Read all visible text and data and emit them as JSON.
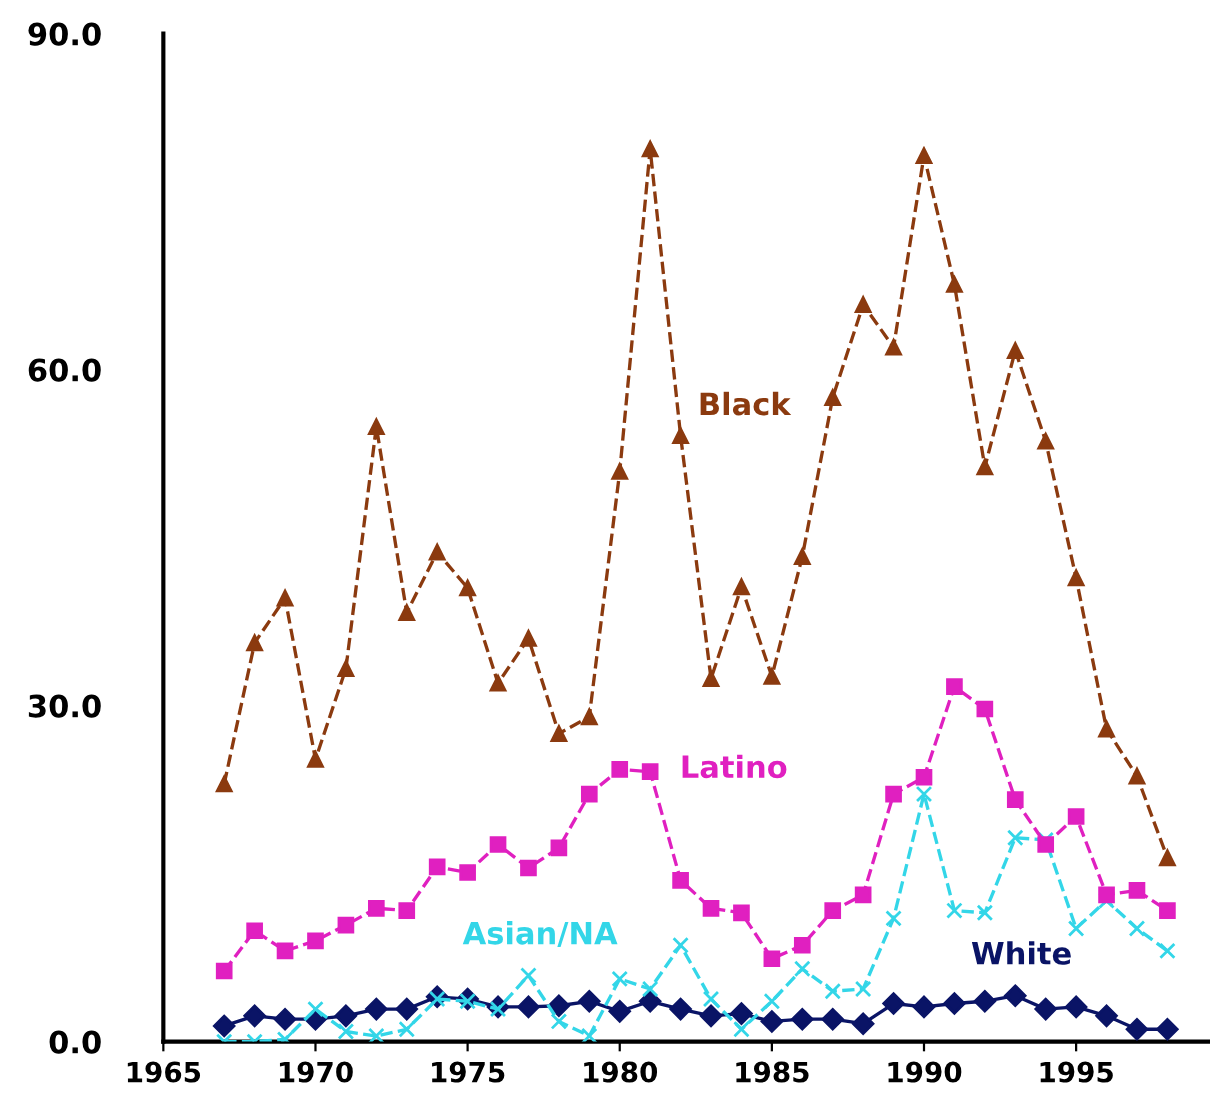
{
  "chart_data": {
    "type": "line",
    "x": [
      1967,
      1968,
      1969,
      1970,
      1971,
      1972,
      1973,
      1974,
      1975,
      1976,
      1977,
      1978,
      1979,
      1980,
      1981,
      1982,
      1983,
      1984,
      1985,
      1986,
      1987,
      1988,
      1989,
      1990,
      1991,
      1992,
      1993,
      1994,
      1995,
      1996,
      1997,
      1998
    ],
    "series": [
      {
        "name": "Black",
        "color": "#8b3a0f",
        "marker": "triangle",
        "line_style": "dashed",
        "values": [
          23.0,
          35.6,
          39.6,
          25.2,
          33.3,
          54.9,
          38.3,
          43.7,
          40.5,
          32.0,
          36.0,
          27.5,
          29.0,
          50.9,
          79.7,
          54.1,
          32.4,
          40.6,
          32.6,
          43.3,
          57.5,
          65.8,
          62.0,
          79.1,
          67.6,
          51.3,
          61.7,
          53.6,
          41.4,
          27.9,
          23.7,
          16.4
        ]
      },
      {
        "name": "Latino",
        "color": "#e020c0",
        "marker": "square",
        "line_style": "dashed",
        "values": [
          6.3,
          9.9,
          8.1,
          9.0,
          10.4,
          11.9,
          11.7,
          15.6,
          15.1,
          17.6,
          15.5,
          17.3,
          22.1,
          24.3,
          24.1,
          14.4,
          11.9,
          11.5,
          7.4,
          8.6,
          11.7,
          13.1,
          22.1,
          23.6,
          31.7,
          29.7,
          21.6,
          17.6,
          20.1,
          13.1,
          13.5,
          11.7
        ]
      },
      {
        "name": "Asian/NA",
        "color": "#33d6e8",
        "marker": "cross",
        "line_style": "dashed",
        "values": [
          0.0,
          0.0,
          0.2,
          2.9,
          0.9,
          0.5,
          1.1,
          3.8,
          3.6,
          2.9,
          5.9,
          1.8,
          0.5,
          5.6,
          4.7,
          8.6,
          3.8,
          1.1,
          3.6,
          6.5,
          4.5,
          4.7,
          11.0,
          22.1,
          11.7,
          11.5,
          18.2,
          18.0,
          10.1,
          12.6,
          10.1,
          8.1
        ]
      },
      {
        "name": "White",
        "color": "#0a1466",
        "marker": "diamond",
        "line_style": "solid",
        "values": [
          1.4,
          2.3,
          2.0,
          2.0,
          2.3,
          2.9,
          2.9,
          4.0,
          3.8,
          3.1,
          3.1,
          3.2,
          3.6,
          2.7,
          3.6,
          2.9,
          2.3,
          2.5,
          1.8,
          2.0,
          2.0,
          1.6,
          3.4,
          3.1,
          3.4,
          3.6,
          4.1,
          2.9,
          3.1,
          2.3,
          1.1,
          1.1
        ]
      }
    ],
    "xlim": [
      1965,
      1999.4
    ],
    "xticks": [
      1965,
      1970,
      1975,
      1980,
      1985,
      1990,
      1995
    ],
    "ylim": [
      0,
      90
    ],
    "yticks": [
      {
        "value": 0,
        "label": "0.0"
      },
      {
        "value": 30,
        "label": "30.0"
      },
      {
        "value": 60,
        "label": "60.0"
      },
      {
        "value": 90,
        "label": "90.0"
      }
    ],
    "grid": false,
    "legend": false
  }
}
